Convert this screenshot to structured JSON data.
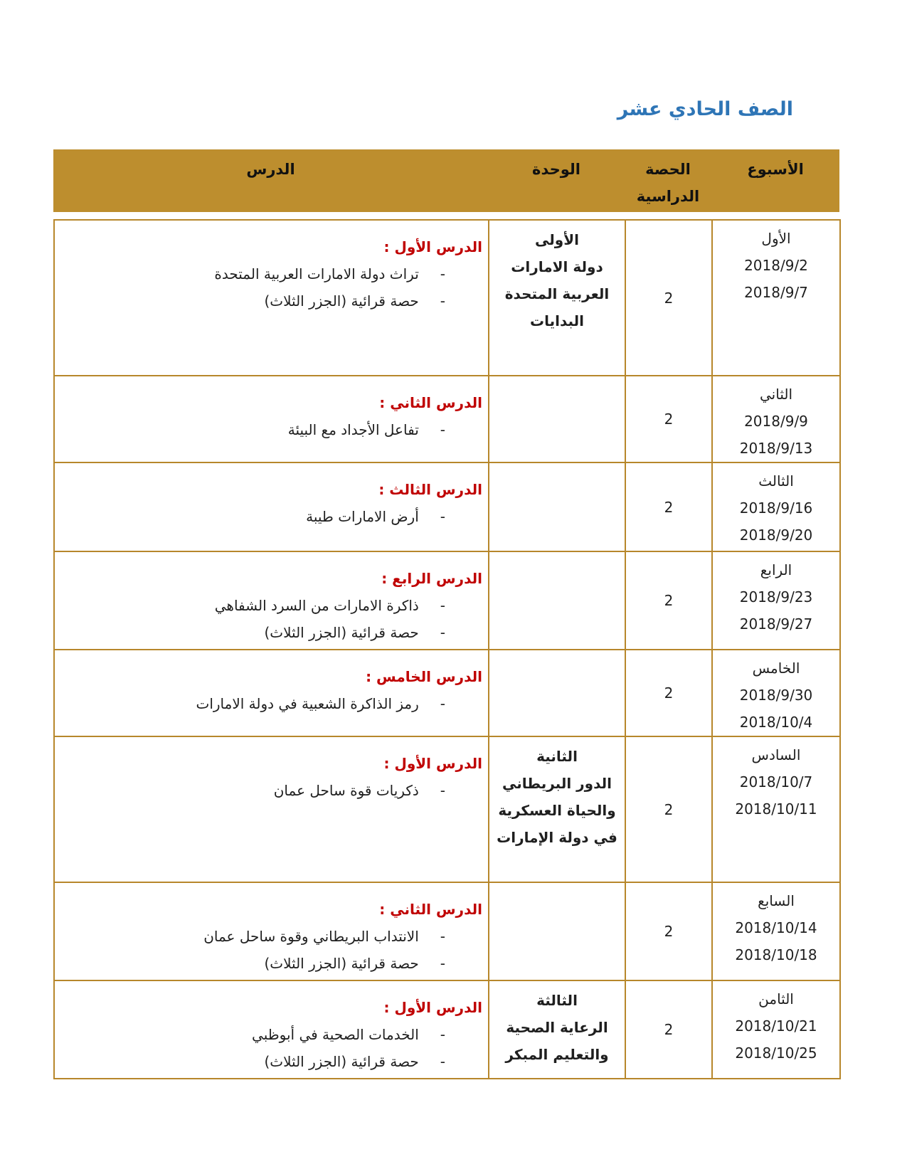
{
  "page": {
    "title": "الصف الحادي عشر"
  },
  "colors": {
    "header_gold": "#BD8E2E",
    "border_gold": "#B7872B",
    "title_blue": "#2E75B6",
    "lesson_red": "#C00000"
  },
  "table": {
    "headers": {
      "week": "الأسبوع",
      "period": "الحصة الدراسية",
      "unit": "الوحدة",
      "lesson": "الدرس"
    },
    "rows": [
      {
        "week_name": "الأول",
        "date_from": "2018/9/2",
        "date_to": "2018/9/7",
        "periods": "2",
        "unit_lines": [
          "الأولى",
          "دولة الامارات",
          "العربية المتحدة",
          "البدايات"
        ],
        "lesson_title": "الدرس الأول :",
        "lesson_items": [
          "تراث دولة الامارات العربية المتحدة",
          "حصة قرائية (الجزر الثلاث)"
        ]
      },
      {
        "week_name": "الثاني",
        "date_from": "2018/9/9",
        "date_to": "2018/9/13",
        "periods": "2",
        "unit_lines": [],
        "lesson_title": "الدرس الثاني :",
        "lesson_items": [
          "تفاعل الأجداد مع البيئة"
        ]
      },
      {
        "week_name": "الثالث",
        "date_from": "2018/9/16",
        "date_to": "2018/9/20",
        "periods": "2",
        "unit_lines": [],
        "lesson_title": "الدرس الثالث :",
        "lesson_items": [
          "أرض الامارات طيبة"
        ]
      },
      {
        "week_name": "الرابع",
        "date_from": "2018/9/23",
        "date_to": "2018/9/27",
        "periods": "2",
        "unit_lines": [],
        "lesson_title": "الدرس الرابع :",
        "lesson_items": [
          "ذاكرة الامارات من السرد الشفاهي",
          "حصة قرائية (الجزر الثلاث)"
        ]
      },
      {
        "week_name": "الخامس",
        "date_from": "2018/9/30",
        "date_to": "2018/10/4",
        "periods": "2",
        "unit_lines": [],
        "lesson_title": "الدرس الخامس :",
        "lesson_items": [
          "رمز الذاكرة الشعبية في دولة الامارات"
        ]
      },
      {
        "week_name": "السادس",
        "date_from": "2018/10/7",
        "date_to": "2018/10/11",
        "periods": "2",
        "unit_lines": [
          "الثانية",
          "الدور البريطاني",
          "والحياة العسكرية",
          "في دولة الإمارات"
        ],
        "lesson_title": "الدرس الأول :",
        "lesson_items": [
          "ذكريات قوة ساحل عمان"
        ]
      },
      {
        "week_name": "السابع",
        "date_from": "2018/10/14",
        "date_to": "2018/10/18",
        "periods": "2",
        "unit_lines": [],
        "lesson_title": "الدرس الثاني :",
        "lesson_items": [
          "الانتداب البريطاني وقوة ساحل عمان",
          "حصة قرائية (الجزر الثلاث)"
        ]
      },
      {
        "week_name": "الثامن",
        "date_from": "2018/10/21",
        "date_to": "2018/10/25",
        "periods": "2",
        "unit_lines": [
          "الثالثة",
          "الرعاية الصحية",
          "والتعليم المبكر"
        ],
        "lesson_title": "الدرس الأول :",
        "lesson_items": [
          "الخدمات الصحية في أبوظبي",
          "حصة قرائية (الجزر الثلاث)"
        ]
      }
    ]
  }
}
